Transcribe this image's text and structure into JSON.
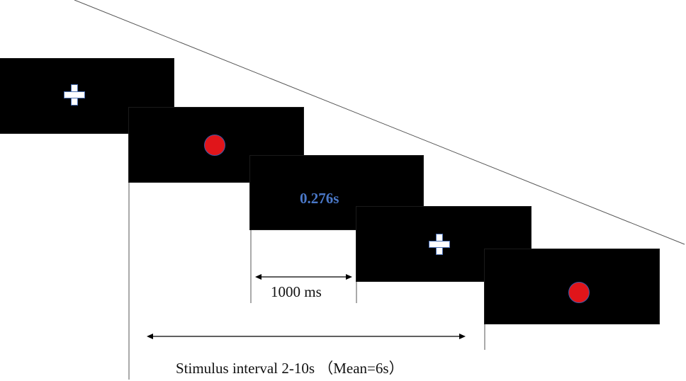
{
  "screens": [
    {
      "stimulus": "fixation-cross"
    },
    {
      "stimulus": "red-circle"
    },
    {
      "stimulus": "reaction-time",
      "text": "0.276s"
    },
    {
      "stimulus": "fixation-cross"
    },
    {
      "stimulus": "red-circle"
    }
  ],
  "labels": {
    "feedback_duration": "1000 ms",
    "stimulus_interval": "Stimulus interval 2-10s （Mean=6s）"
  },
  "colors": {
    "screen": "#000000",
    "cross": "#ffffff",
    "dot": "#e0151a",
    "rt_text": "#4a78c8"
  }
}
